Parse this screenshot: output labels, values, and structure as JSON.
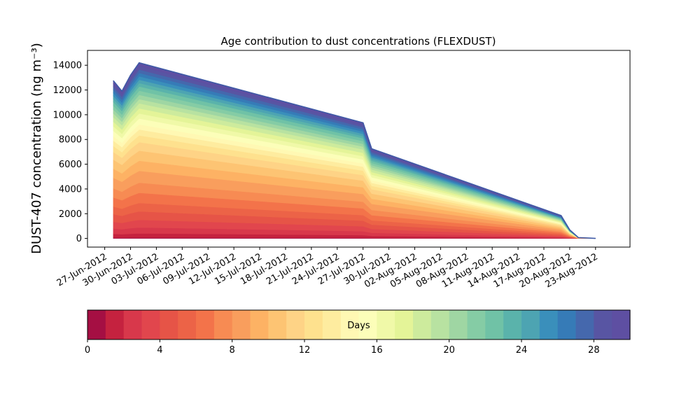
{
  "chart_data": {
    "type": "area",
    "stacked": true,
    "title": "Age contribution to dust concentrations (FLEXDUST)",
    "ylabel": "DUST-407 concentration (ng m⁻³)",
    "xlabel": "",
    "ylim": [
      -700,
      15200
    ],
    "xlim": [
      "2012-06-25",
      "2012-08-27"
    ],
    "yticks": [
      0,
      2000,
      4000,
      6000,
      8000,
      10000,
      12000,
      14000
    ],
    "xticks": [
      "2012-06-27",
      "2012-06-30",
      "2012-07-03",
      "2012-07-06",
      "2012-07-09",
      "2012-07-12",
      "2012-07-15",
      "2012-07-18",
      "2012-07-21",
      "2012-07-24",
      "2012-07-27",
      "2012-07-30",
      "2012-08-02",
      "2012-08-05",
      "2012-08-08",
      "2012-08-11",
      "2012-08-14",
      "2012-08-17",
      "2012-08-20",
      "2012-08-23"
    ],
    "xtick_labels": [
      "27-Jun-2012",
      "30-Jun-2012",
      "03-Jul-2012",
      "06-Jul-2012",
      "09-Jul-2012",
      "12-Jul-2012",
      "15-Jul-2012",
      "18-Jul-2012",
      "21-Jul-2012",
      "24-Jul-2012",
      "27-Jul-2012",
      "30-Jul-2012",
      "02-Aug-2012",
      "05-Aug-2012",
      "08-Aug-2012",
      "11-Aug-2012",
      "14-Aug-2012",
      "17-Aug-2012",
      "20-Aug-2012",
      "23-Aug-2012"
    ],
    "x": [
      "2012-06-28",
      "2012-06-29",
      "2012-06-30",
      "2012-07-01",
      "2012-07-27",
      "2012-07-28",
      "2012-08-19",
      "2012-08-20",
      "2012-08-21",
      "2012-08-22",
      "2012-08-23"
    ],
    "totals": [
      12750,
      11900,
      13200,
      14200,
      9350,
      7250,
      1850,
      700,
      70,
      40,
      0
    ],
    "layer_fractions": [
      0.005,
      0.025,
      0.035,
      0.045,
      0.05,
      0.05,
      0.06,
      0.06,
      0.07,
      0.06,
      0.06,
      0.05,
      0.04,
      0.035,
      0.03,
      0.035,
      0.03,
      0.03,
      0.03,
      0.025,
      0.025,
      0.025,
      0.025,
      0.02,
      0.02,
      0.02,
      0.02,
      0.02,
      0.02,
      0.02
    ],
    "grid": false,
    "colorbar": {
      "label": "Days",
      "min": 0,
      "max": 30,
      "ticks": [
        0,
        4,
        8,
        12,
        16,
        20,
        24,
        28
      ],
      "n_bins": 30,
      "colormap": "Spectral",
      "colors": [
        "#a50f43",
        "#c5223f",
        "#d8384b",
        "#e1464d",
        "#e65447",
        "#ec6347",
        "#f3734a",
        "#f78b53",
        "#f99e5d",
        "#fdb264",
        "#fdc473",
        "#fed386",
        "#fee18e",
        "#feec9f",
        "#fff8b3",
        "#fcfeb9",
        "#f0f9a8",
        "#e4f498",
        "#cdeb9d",
        "#b8e2a1",
        "#9fd6a3",
        "#85cca5",
        "#70c2a6",
        "#5ab3ab",
        "#4da4b2",
        "#3a8fbb",
        "#367bb7",
        "#4568ad",
        "#5855a3",
        "#5e4fa2"
      ]
    }
  }
}
